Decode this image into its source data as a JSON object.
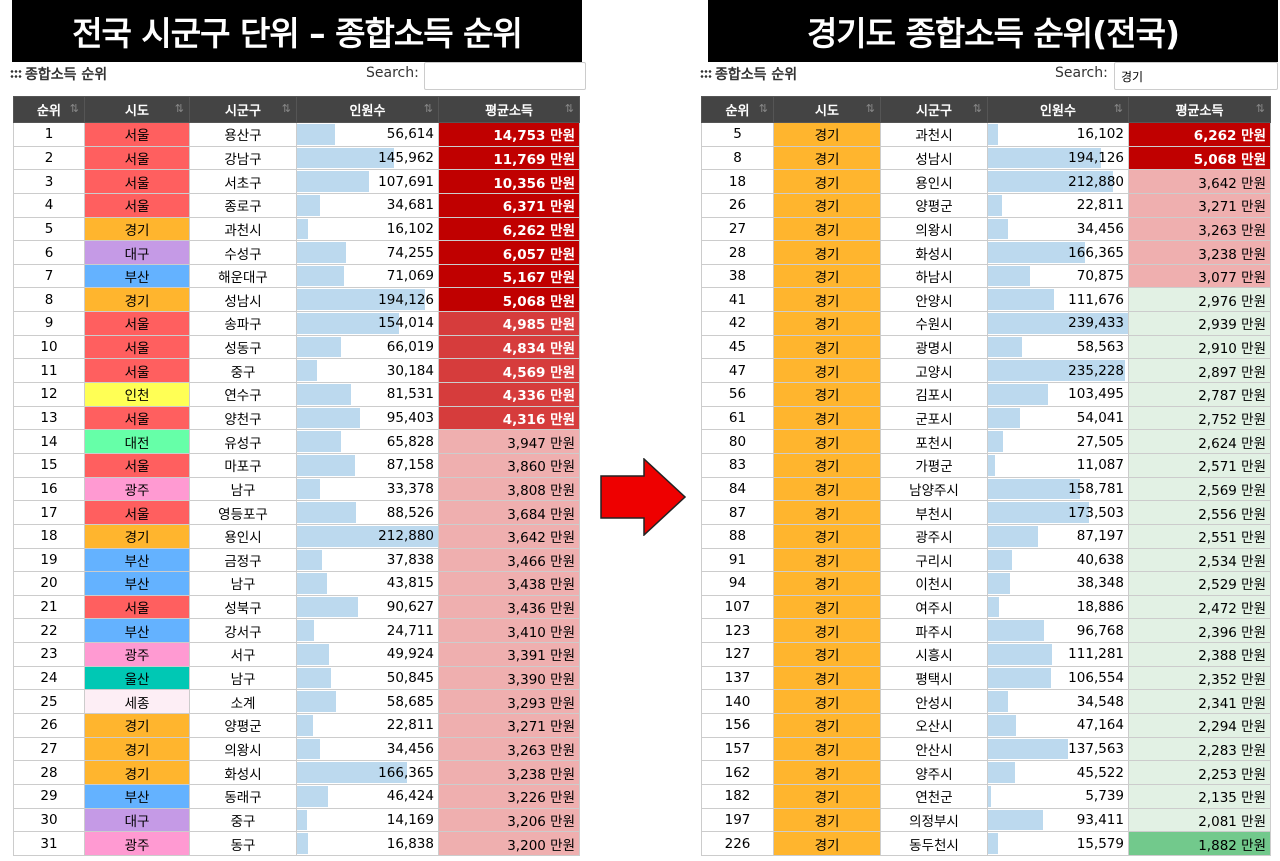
{
  "left": {
    "banner": "전국 시군구 단위 – 종합소득 순위",
    "title": "종합소득 순위",
    "search_label": "Search:",
    "search_value": "",
    "headers": [
      "순위",
      "시도",
      "시군구",
      "인원수",
      "평균소득"
    ],
    "rows": [
      [
        "1",
        "서울",
        "용산구",
        "56,614",
        "14,753 만원"
      ],
      [
        "2",
        "서울",
        "강남구",
        "145,962",
        "11,769 만원"
      ],
      [
        "3",
        "서울",
        "서초구",
        "107,691",
        "10,356 만원"
      ],
      [
        "4",
        "서울",
        "종로구",
        "34,681",
        "6,371 만원"
      ],
      [
        "5",
        "경기",
        "과천시",
        "16,102",
        "6,262 만원"
      ],
      [
        "6",
        "대구",
        "수성구",
        "74,255",
        "6,057 만원"
      ],
      [
        "7",
        "부산",
        "해운대구",
        "71,069",
        "5,167 만원"
      ],
      [
        "8",
        "경기",
        "성남시",
        "194,126",
        "5,068 만원"
      ],
      [
        "9",
        "서울",
        "송파구",
        "154,014",
        "4,985 만원"
      ],
      [
        "10",
        "서울",
        "성동구",
        "66,019",
        "4,834 만원"
      ],
      [
        "11",
        "서울",
        "중구",
        "30,184",
        "4,569 만원"
      ],
      [
        "12",
        "인천",
        "연수구",
        "81,531",
        "4,336 만원"
      ],
      [
        "13",
        "서울",
        "양천구",
        "95,403",
        "4,316 만원"
      ],
      [
        "14",
        "대전",
        "유성구",
        "65,828",
        "3,947 만원"
      ],
      [
        "15",
        "서울",
        "마포구",
        "87,158",
        "3,860 만원"
      ],
      [
        "16",
        "광주",
        "남구",
        "33,378",
        "3,808 만원"
      ],
      [
        "17",
        "서울",
        "영등포구",
        "88,526",
        "3,684 만원"
      ],
      [
        "18",
        "경기",
        "용인시",
        "212,880",
        "3,642 만원"
      ],
      [
        "19",
        "부산",
        "금정구",
        "37,838",
        "3,466 만원"
      ],
      [
        "20",
        "부산",
        "남구",
        "43,815",
        "3,438 만원"
      ],
      [
        "21",
        "서울",
        "성북구",
        "90,627",
        "3,436 만원"
      ],
      [
        "22",
        "부산",
        "강서구",
        "24,711",
        "3,410 만원"
      ],
      [
        "23",
        "광주",
        "서구",
        "49,924",
        "3,391 만원"
      ],
      [
        "24",
        "울산",
        "남구",
        "50,845",
        "3,390 만원"
      ],
      [
        "25",
        "세종",
        "소계",
        "58,685",
        "3,293 만원"
      ],
      [
        "26",
        "경기",
        "양평군",
        "22,811",
        "3,271 만원"
      ],
      [
        "27",
        "경기",
        "의왕시",
        "34,456",
        "3,263 만원"
      ],
      [
        "28",
        "경기",
        "화성시",
        "166,365",
        "3,238 만원"
      ],
      [
        "29",
        "부산",
        "동래구",
        "46,424",
        "3,226 만원"
      ],
      [
        "30",
        "대구",
        "중구",
        "14,169",
        "3,206 만원"
      ],
      [
        "31",
        "광주",
        "동구",
        "16,838",
        "3,200 만원"
      ]
    ],
    "bar_fraction": [
      0.27,
      0.69,
      0.51,
      0.16,
      0.08,
      0.35,
      0.33,
      0.91,
      0.72,
      0.31,
      0.14,
      0.38,
      0.45,
      0.31,
      0.41,
      0.16,
      0.42,
      1.0,
      0.18,
      0.21,
      0.43,
      0.12,
      0.23,
      0.24,
      0.28,
      0.11,
      0.16,
      0.78,
      0.22,
      0.07,
      0.08
    ],
    "income_level": [
      1,
      1,
      1,
      1,
      1,
      1,
      1,
      1,
      2,
      2,
      2,
      2,
      2,
      3,
      3,
      3,
      3,
      3,
      3,
      3,
      3,
      3,
      3,
      3,
      3,
      3,
      3,
      3,
      3,
      3,
      3
    ]
  },
  "right": {
    "banner": "경기도 종합소득 순위(전국)",
    "title": "종합소득 순위",
    "search_label": "Search:",
    "search_value": "경기",
    "headers": [
      "순위",
      "시도",
      "시군구",
      "인원수",
      "평균소득"
    ],
    "rows": [
      [
        "5",
        "경기",
        "과천시",
        "16,102",
        "6,262 만원"
      ],
      [
        "8",
        "경기",
        "성남시",
        "194,126",
        "5,068 만원"
      ],
      [
        "18",
        "경기",
        "용인시",
        "212,880",
        "3,642 만원"
      ],
      [
        "26",
        "경기",
        "양평군",
        "22,811",
        "3,271 만원"
      ],
      [
        "27",
        "경기",
        "의왕시",
        "34,456",
        "3,263 만원"
      ],
      [
        "28",
        "경기",
        "화성시",
        "166,365",
        "3,238 만원"
      ],
      [
        "38",
        "경기",
        "하남시",
        "70,875",
        "3,077 만원"
      ],
      [
        "41",
        "경기",
        "안양시",
        "111,676",
        "2,976 만원"
      ],
      [
        "42",
        "경기",
        "수원시",
        "239,433",
        "2,939 만원"
      ],
      [
        "45",
        "경기",
        "광명시",
        "58,563",
        "2,910 만원"
      ],
      [
        "47",
        "경기",
        "고양시",
        "235,228",
        "2,897 만원"
      ],
      [
        "56",
        "경기",
        "김포시",
        "103,495",
        "2,787 만원"
      ],
      [
        "61",
        "경기",
        "군포시",
        "54,041",
        "2,752 만원"
      ],
      [
        "80",
        "경기",
        "포천시",
        "27,505",
        "2,624 만원"
      ],
      [
        "83",
        "경기",
        "가평군",
        "11,087",
        "2,571 만원"
      ],
      [
        "84",
        "경기",
        "남양주시",
        "158,781",
        "2,569 만원"
      ],
      [
        "87",
        "경기",
        "부천시",
        "173,503",
        "2,556 만원"
      ],
      [
        "88",
        "경기",
        "광주시",
        "87,197",
        "2,551 만원"
      ],
      [
        "91",
        "경기",
        "구리시",
        "40,638",
        "2,534 만원"
      ],
      [
        "94",
        "경기",
        "이천시",
        "38,348",
        "2,529 만원"
      ],
      [
        "107",
        "경기",
        "여주시",
        "18,886",
        "2,472 만원"
      ],
      [
        "123",
        "경기",
        "파주시",
        "96,768",
        "2,396 만원"
      ],
      [
        "127",
        "경기",
        "시흥시",
        "111,281",
        "2,388 만원"
      ],
      [
        "137",
        "경기",
        "평택시",
        "106,554",
        "2,352 만원"
      ],
      [
        "140",
        "경기",
        "안성시",
        "34,548",
        "2,341 만원"
      ],
      [
        "156",
        "경기",
        "오산시",
        "47,164",
        "2,294 만원"
      ],
      [
        "157",
        "경기",
        "안산시",
        "137,563",
        "2,283 만원"
      ],
      [
        "162",
        "경기",
        "양주시",
        "45,522",
        "2,253 만원"
      ],
      [
        "182",
        "경기",
        "연천군",
        "5,739",
        "2,135 만원"
      ],
      [
        "197",
        "경기",
        "의정부시",
        "93,411",
        "2,081 만원"
      ],
      [
        "226",
        "경기",
        "동두천시",
        "15,579",
        "1,882 만원"
      ]
    ],
    "bar_fraction": [
      0.07,
      0.81,
      0.89,
      0.1,
      0.14,
      0.69,
      0.3,
      0.47,
      1.0,
      0.24,
      0.98,
      0.43,
      0.23,
      0.11,
      0.05,
      0.66,
      0.72,
      0.36,
      0.17,
      0.16,
      0.08,
      0.4,
      0.46,
      0.45,
      0.14,
      0.2,
      0.57,
      0.19,
      0.02,
      0.39,
      0.07
    ],
    "income_level": [
      1,
      1,
      3,
      3,
      3,
      3,
      3,
      4,
      4,
      4,
      4,
      4,
      4,
      4,
      4,
      4,
      4,
      4,
      4,
      4,
      4,
      4,
      4,
      4,
      4,
      4,
      4,
      4,
      4,
      4,
      5
    ]
  },
  "region_colors": {
    "서울": "#ff5f5f",
    "경기": "#ffb52e",
    "대구": "#c59ae6",
    "부산": "#64b2ff",
    "인천": "#ffff55",
    "대전": "#66ffa8",
    "광주": "#ff9ad2",
    "울산": "#00c8b4",
    "세종": "#fdeef5"
  },
  "arrow_color": "#ee0000"
}
